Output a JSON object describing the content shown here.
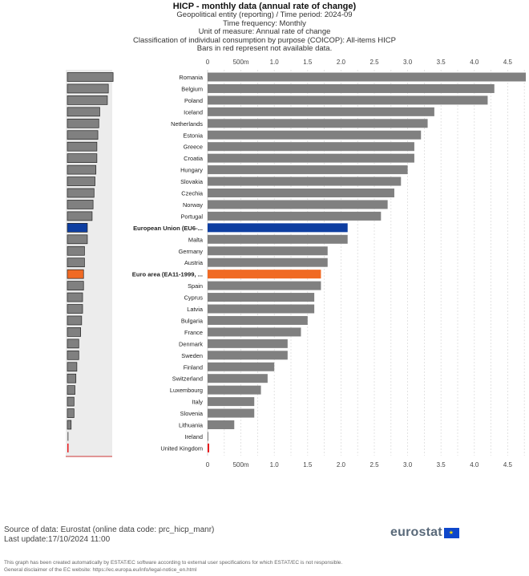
{
  "header": {
    "title": "HICP - monthly data (annual rate of change)",
    "subtitle_lines": [
      "Geopolitical entity (reporting) / Time period: 2024-09",
      "Time frequency: Monthly",
      "Unit of measure: Annual rate of change",
      "Classification of individual consumption by purpose (COICOP): All-items HICP",
      "Bars in red represent not available data."
    ]
  },
  "chart_data": {
    "type": "bar",
    "orientation": "horizontal",
    "categories": [
      "Romania",
      "Belgium",
      "Poland",
      "Iceland",
      "Netherlands",
      "Estonia",
      "Greece",
      "Croatia",
      "Hungary",
      "Slovakia",
      "Czechia",
      "Norway",
      "Portugal",
      "European Union (EU6-...",
      "Malta",
      "Germany",
      "Austria",
      "Euro area (EA11-1999, ...",
      "Spain",
      "Cyprus",
      "Latvia",
      "Bulgaria",
      "France",
      "Denmark",
      "Sweden",
      "Finland",
      "Switzerland",
      "Luxembourg",
      "Italy",
      "Slovenia",
      "Lithuania",
      "Ireland",
      "United Kingdom"
    ],
    "values": [
      4.8,
      4.3,
      4.2,
      3.4,
      3.3,
      3.2,
      3.1,
      3.1,
      3.0,
      2.9,
      2.8,
      2.7,
      2.6,
      2.1,
      2.1,
      1.8,
      1.8,
      1.7,
      1.7,
      1.6,
      1.6,
      1.5,
      1.4,
      1.2,
      1.2,
      1.0,
      0.9,
      0.8,
      0.7,
      0.7,
      0.4,
      0.0,
      null
    ],
    "bold_categories": [
      "European Union (EU6-...",
      "Euro area (EA11-1999, ..."
    ],
    "x_ticks": [
      "0",
      "500m",
      "1.0",
      "1.5",
      "2.0",
      "2.5",
      "3.0",
      "3.5",
      "4.0",
      "4.5"
    ],
    "x_tick_values": [
      0,
      0.5,
      1.0,
      1.5,
      2.0,
      2.5,
      3.0,
      3.5,
      4.0,
      4.5
    ],
    "xlim": [
      0,
      4.8
    ],
    "grid": true,
    "colors": {
      "default": "#808080",
      "eu": "#0e3ea1",
      "euro_area": "#f06a24",
      "not_available": "#e8191c"
    }
  },
  "footer": {
    "source": "Source of data: Eurostat (online data code: prc_hicp_manr)",
    "last_update": "Last update:17/10/2024 11:00",
    "logo_text": "eurostat",
    "disclaimer_1": "This graph has been created automatically by ESTAT/EC software according to external user specifications for which ESTAT/EC is not responsible.",
    "disclaimer_2": "General disclaimer of the EC website: https://ec.europa.eu/info/legal-notice_en.html"
  }
}
